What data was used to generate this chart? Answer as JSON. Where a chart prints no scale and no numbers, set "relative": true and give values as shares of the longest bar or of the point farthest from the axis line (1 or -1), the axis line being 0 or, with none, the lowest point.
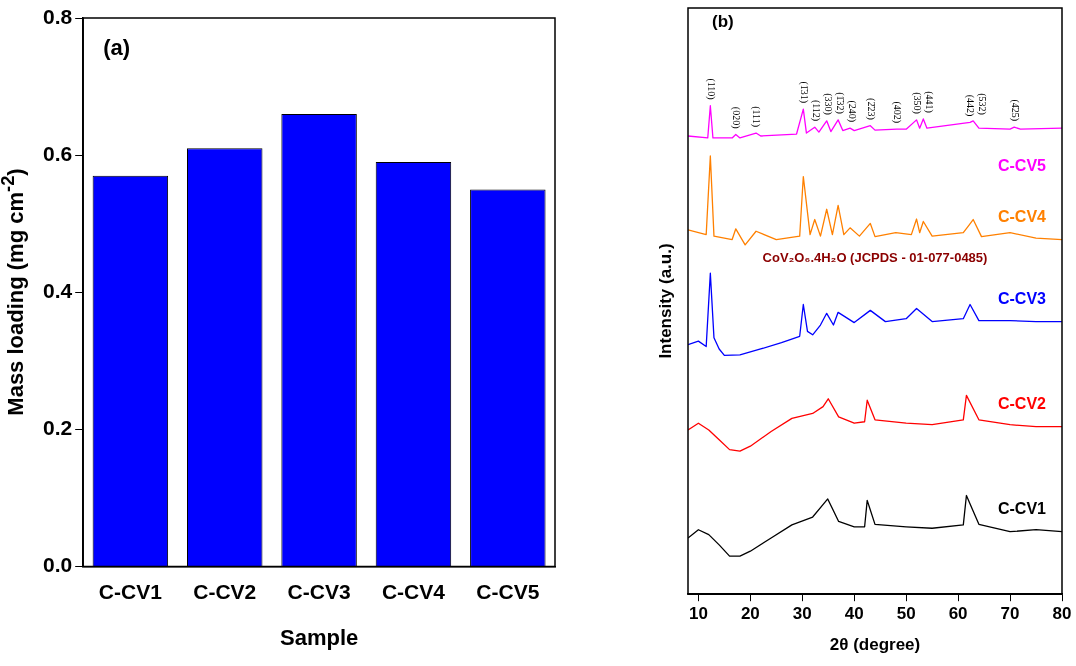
{
  "chart_data": [
    {
      "type": "bar",
      "xlabel": "Sample",
      "ylabel": "Mass loading (mg cm$^{-2}$)",
      "categories": [
        "C-CV1",
        "C-CV2",
        "C-CV3",
        "C-CV4",
        "C-CV5"
      ],
      "values": [
        0.57,
        0.61,
        0.66,
        0.59,
        0.55
      ],
      "color": "#0000ff",
      "ylim": [
        0,
        0.8
      ],
      "yticks": [
        {
          "value": 0,
          "label": "0.0"
        },
        0.2,
        0.4,
        0.6,
        0.8
      ],
      "grid": false,
      "annotations": [
        "(a)"
      ]
    },
    {
      "type": "line",
      "xlabel": "2θ (degree)",
      "ylabel": "Intensity (a.u.)",
      "relative": true,
      "tick_labels": "x",
      "grid": false,
      "xlim": [
        8,
        80
      ],
      "xticks": [
        10,
        20,
        30,
        40,
        50,
        60,
        70,
        80
      ],
      "series": [
        {
          "name": "C-CV1",
          "color": "#000000",
          "x": [
            8,
            10,
            12,
            14,
            16,
            18,
            20,
            24,
            28,
            32,
            34.9,
            37,
            40,
            42,
            42.5,
            44,
            50,
            55,
            61,
            61.6,
            64,
            70,
            75,
            80
          ],
          "values": [
            0.115,
            0.132,
            0.122,
            0.101,
            0.078,
            0.078,
            0.088,
            0.115,
            0.142,
            0.158,
            0.195,
            0.149,
            0.138,
            0.138,
            0.192,
            0.143,
            0.138,
            0.135,
            0.142,
            0.202,
            0.143,
            0.128,
            0.132,
            0.128
          ]
        },
        {
          "name": "C-CV2",
          "color": "#ff0000",
          "x": [
            8,
            10,
            12,
            14,
            16,
            18,
            20,
            24,
            28,
            32,
            34,
            35,
            37,
            40,
            42,
            42.5,
            44,
            50,
            55,
            61,
            61.6,
            64,
            70,
            75,
            80
          ],
          "values": [
            0.336,
            0.35,
            0.336,
            0.316,
            0.296,
            0.293,
            0.303,
            0.333,
            0.36,
            0.37,
            0.384,
            0.4,
            0.363,
            0.35,
            0.353,
            0.397,
            0.357,
            0.35,
            0.347,
            0.357,
            0.407,
            0.357,
            0.347,
            0.343,
            0.343
          ]
        },
        {
          "name": "C-CV3",
          "color": "#0000ff",
          "x": [
            8,
            10,
            11.5,
            12.3,
            13,
            14,
            15,
            18,
            22,
            26,
            29.5,
            30.2,
            31,
            32,
            33.5,
            34.7,
            36,
            36.9,
            40,
            43.1,
            46,
            50,
            52,
            55,
            61,
            62.3,
            64,
            70,
            75,
            80
          ],
          "values": [
            0.511,
            0.518,
            0.507,
            0.657,
            0.525,
            0.502,
            0.489,
            0.49,
            0.502,
            0.515,
            0.528,
            0.593,
            0.538,
            0.531,
            0.551,
            0.575,
            0.551,
            0.577,
            0.556,
            0.581,
            0.558,
            0.564,
            0.585,
            0.558,
            0.564,
            0.593,
            0.56,
            0.56,
            0.558,
            0.558
          ]
        },
        {
          "name": "C-CV4",
          "color": "#ff8000",
          "x": [
            8,
            11.5,
            12.3,
            13,
            16.5,
            17.2,
            19,
            21.1,
            25,
            29.5,
            30.2,
            31.5,
            32.4,
            33.5,
            34.7,
            35.8,
            36.9,
            38,
            39.2,
            41,
            43.1,
            44,
            48,
            51,
            52,
            52.6,
            53.3,
            55,
            61,
            62,
            62.9,
            64.5,
            70,
            75,
            80
          ],
          "values": [
            0.746,
            0.736,
            0.897,
            0.733,
            0.726,
            0.748,
            0.715,
            0.743,
            0.726,
            0.733,
            0.855,
            0.736,
            0.767,
            0.733,
            0.788,
            0.736,
            0.796,
            0.736,
            0.75,
            0.733,
            0.759,
            0.732,
            0.74,
            0.736,
            0.768,
            0.74,
            0.763,
            0.733,
            0.74,
            0.754,
            0.767,
            0.732,
            0.74,
            0.729,
            0.726
          ]
        },
        {
          "name": "C-CV5",
          "color": "#ff00ff",
          "x": [
            8,
            11.8,
            12.3,
            12.8,
            16.5,
            17.2,
            18,
            21.1,
            22,
            28.9,
            30.2,
            30.8,
            32.4,
            33.2,
            34.7,
            35.5,
            36.9,
            37.8,
            39.2,
            40,
            43.1,
            44,
            48.2,
            50,
            52,
            52.6,
            53.3,
            54,
            62.3,
            62.9,
            64,
            70,
            70.8,
            72,
            80
          ],
          "values": [
            0.938,
            0.934,
            1.0,
            0.934,
            0.934,
            0.941,
            0.934,
            0.944,
            0.938,
            0.942,
            0.993,
            0.944,
            0.956,
            0.946,
            0.969,
            0.947,
            0.971,
            0.949,
            0.954,
            0.949,
            0.959,
            0.95,
            0.952,
            0.952,
            0.971,
            0.954,
            0.973,
            0.954,
            0.966,
            0.969,
            0.954,
            0.952,
            0.956,
            0.952,
            0.954
          ]
        }
      ],
      "annotations": [
        "(b)",
        "CoV₂O₆.4H₂O (JCPDS - 01-077-0485)",
        {
          "text": "(110)",
          "x": 12.3,
          "y": 1.0
        },
        {
          "text": "(020)",
          "x": 17.2,
          "y": 0.941
        },
        {
          "text": "(111)",
          "x": 21.1,
          "y": 0.944
        },
        {
          "text": "(1̄31)",
          "x": 30.2,
          "y": 0.993
        },
        {
          "text": "(112)",
          "x": 32.4,
          "y": 0.956
        },
        {
          "text": "(330)",
          "x": 34.7,
          "y": 0.969
        },
        {
          "text": "(1̄32)",
          "x": 36.9,
          "y": 0.971
        },
        {
          "text": "(240)",
          "x": 39.2,
          "y": 0.954
        },
        {
          "text": "(2̄23)",
          "x": 43.1,
          "y": 0.959
        },
        {
          "text": "(402)",
          "x": 48.2,
          "y": 0.952
        },
        {
          "text": "(350)",
          "x": 52,
          "y": 0.971
        },
        {
          "text": "(441)",
          "x": 53.3,
          "y": 0.973
        },
        {
          "text": "(442)",
          "x": 62.3,
          "y": 0.966
        },
        {
          "text": "(532)",
          "x": 62.9,
          "y": 0.969
        },
        {
          "text": "(4̄25)",
          "x": 70.8,
          "y": 0.956
        }
      ]
    }
  ]
}
